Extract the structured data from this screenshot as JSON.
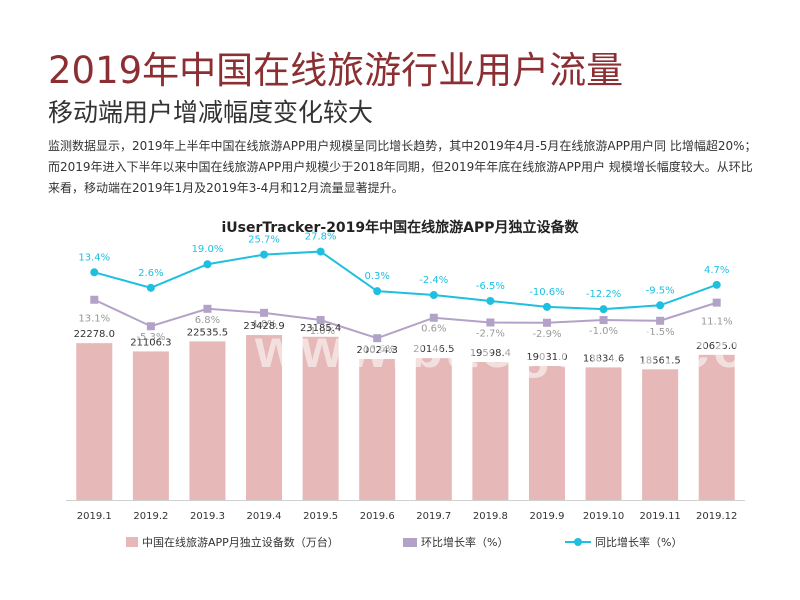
{
  "page": {
    "title": "2019年中国在线旅游行业用户流量",
    "subtitle": "移动端用户增减幅度变化较大",
    "description": "监测数据显示，2019年上半年中国在线旅游APP用户规模呈同比增长趋势，其中2019年4月-5月在线旅游APP用户同 比增幅超20%；而2019年进入下半年以来中国在线旅游APP用户规模少于2018年同期，但2019年年底在线旅游APP用户 规模增长幅度较大。从环比来看，移动端在2019年1月及2019年3-4月和12月流量显著提升。",
    "watermark": "www.baogao8.com"
  },
  "colors": {
    "title": "#8b2f33",
    "bar": "#e6b8b8",
    "mom": "#b3a2c7",
    "yoy": "#1fbfe0"
  },
  "chart_data": {
    "type": "bar",
    "title": "iUserTracker-2019年中国在线旅游APP月独立设备数",
    "categories": [
      "2019.1",
      "2019.2",
      "2019.3",
      "2019.4",
      "2019.5",
      "2019.6",
      "2019.7",
      "2019.8",
      "2019.9",
      "2019.10",
      "2019.11",
      "2019.12"
    ],
    "series": [
      {
        "name": "中国在线旅游APP月独立设备数（万台）",
        "type": "bar",
        "values": [
          22278.0,
          21106.3,
          22535.5,
          23428.9,
          23185.4,
          20024.3,
          20146.5,
          19598.4,
          19031.0,
          18834.6,
          18561.5,
          20625.0
        ],
        "labels": [
          "22278.0",
          "21106.3",
          "22535.5",
          "23428.9",
          "23185.4",
          "20024.3",
          "20146.5",
          "19598.4",
          "19031.0",
          "18834.6",
          "18561.5",
          "20625.0"
        ]
      },
      {
        "name": "环比增长率（%）",
        "type": "line",
        "values": [
          13.1,
          -5.3,
          6.8,
          4.0,
          -1.0,
          -13.6,
          0.6,
          -2.7,
          -2.9,
          -1.0,
          -1.5,
          11.1
        ],
        "labels": [
          "13.1%",
          "-5.3%",
          "6.8%",
          "4.0%",
          "-1.0%",
          "-13.6%",
          "0.6%",
          "-2.7%",
          "-2.9%",
          "-1.0%",
          "-1.5%",
          "11.1%"
        ]
      },
      {
        "name": "同比增长率（%）",
        "type": "line",
        "values": [
          13.4,
          2.6,
          19.0,
          25.7,
          27.8,
          0.3,
          -2.4,
          -6.5,
          -10.6,
          -12.2,
          -9.5,
          4.7
        ],
        "labels": [
          "13.4%",
          "2.6%",
          "19.0%",
          "25.7%",
          "27.8%",
          "0.3%",
          "-2.4%",
          "-6.5%",
          "-10.6%",
          "-12.2%",
          "-9.5%",
          "4.7%"
        ]
      }
    ],
    "ylim": [
      0,
      30000
    ]
  }
}
